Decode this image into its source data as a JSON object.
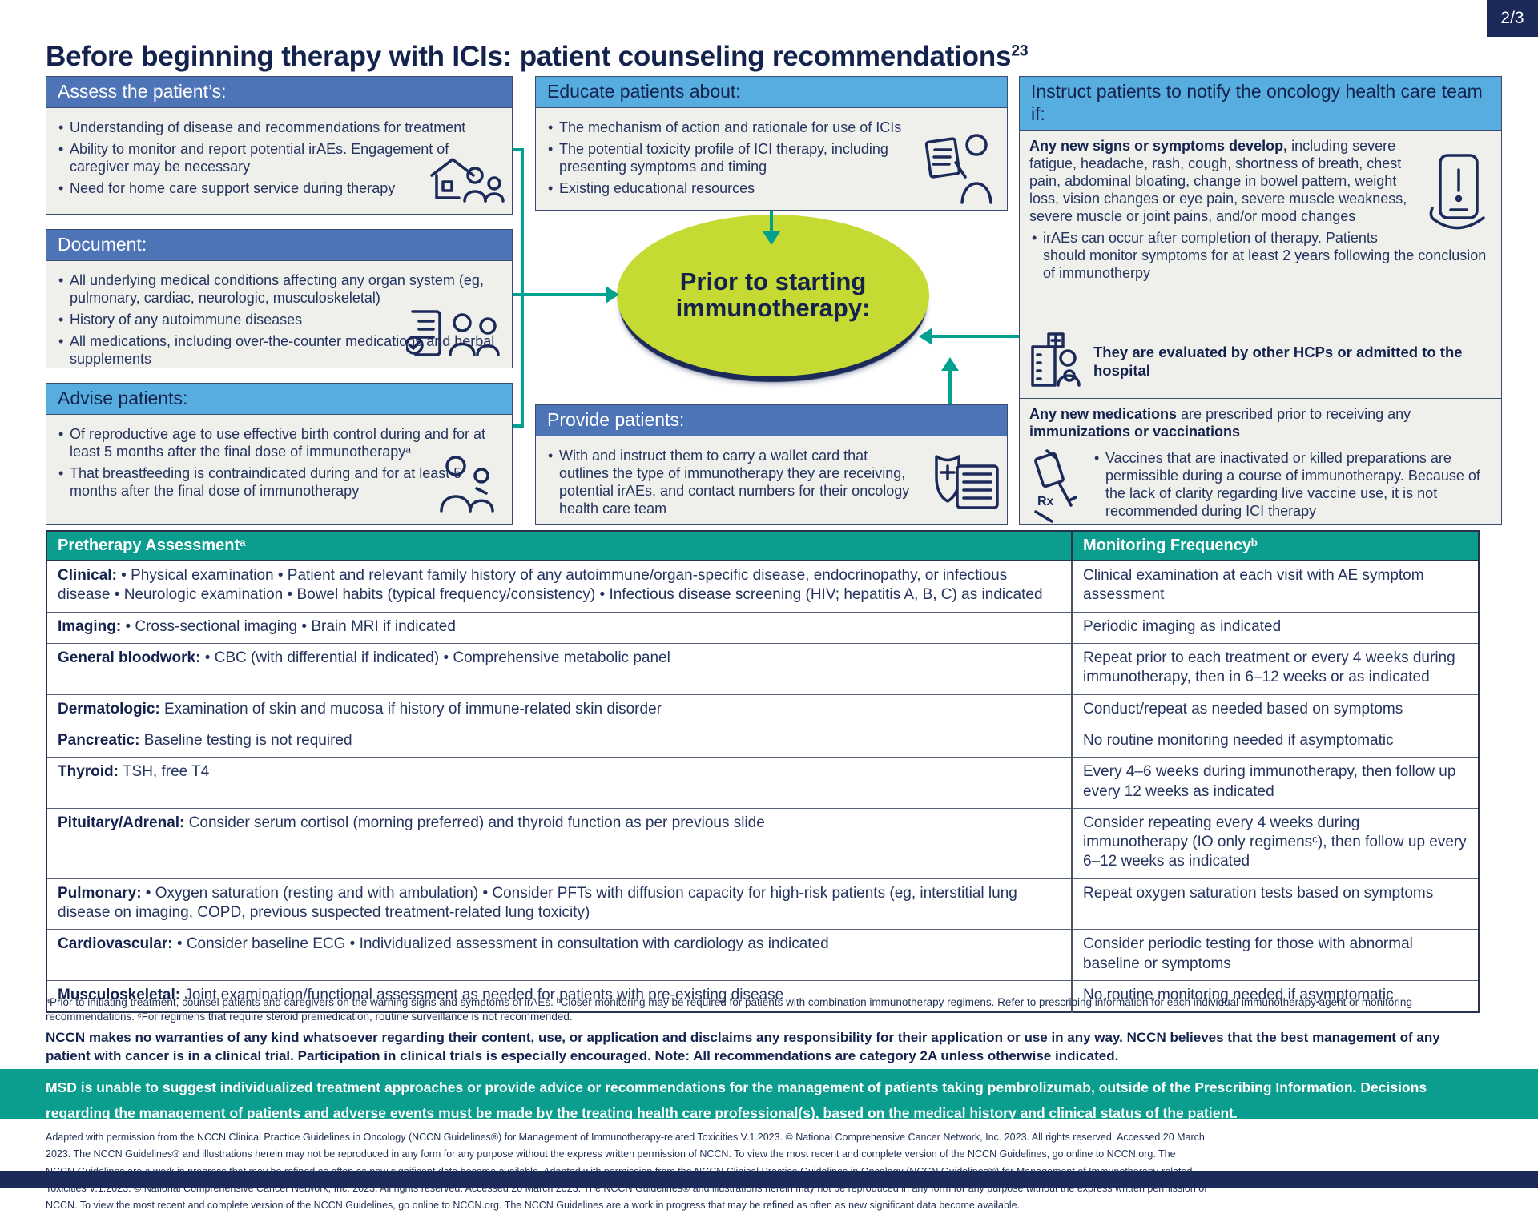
{
  "page": {
    "indicator": "2/3"
  },
  "title": {
    "text": "Before beginning therapy with ICIs: patient counseling recommendations",
    "sup": "23"
  },
  "colors": {
    "navy": "#1b2a59",
    "medium_blue": "#4d74b7",
    "light_blue": "#58ade0",
    "teal": "#0b9d8e",
    "arrow_teal": "#00a18f",
    "green": "#c5da33",
    "box_bg": "#efefec"
  },
  "flowchart": {
    "assess": {
      "header": "Assess the patient’s:",
      "bullets": [
        "Understanding of disease and recommendations for treatment",
        "Ability to monitor and report potential irAEs. Engagement of caregiver may be necessary",
        "Need for home care support service during therapy"
      ]
    },
    "document": {
      "header": "Document:",
      "bullets": [
        "All underlying medical conditions affecting any organ system (eg, pulmonary, cardiac, neurologic, musculoskeletal)",
        "History of any autoimmune diseases",
        "All medications, including over-the-counter medications and herbal supplements"
      ]
    },
    "advise": {
      "header": "Advise patients:",
      "bullets": [
        "Of reproductive age to use effective birth control during and for at least 5 months after the final dose of immunotherapyᵃ",
        "That breastfeeding is contraindicated during and for at least 5 months after the final dose of immunotherapy"
      ]
    },
    "educate": {
      "header": "Educate patients about:",
      "bullets": [
        "The mechanism of action and rationale for use of ICIs",
        "The potential toxicity profile of ICI therapy, including presenting symptoms and timing",
        "Existing educational resources"
      ]
    },
    "provide": {
      "header": "Provide patients:",
      "bullets": [
        "With and instruct them to carry a wallet card that outlines the type of immunotherapy they are receiving, potential irAEs, and contact numbers for their oncology health care team"
      ]
    },
    "ellipse": {
      "line1": "Prior to starting",
      "line2": "immunotherapy:"
    },
    "instruct": {
      "header": "Instruct patients to notify the oncology health care team if:",
      "s1_bold": "Any new signs or symptoms develop,",
      "s1_rest": " including severe fatigue, headache, rash, cough, shortness of breath, chest pain, abdominal bloating, change in bowel pattern, weight loss, vision changes or eye pain, severe muscle weakness, severe muscle or joint pains, and/or mood changes",
      "s1_bullets": [
        "irAEs can occur after completion of therapy. Patients should monitor symptoms for at least 2 years following the conclusion of immunotherpy"
      ],
      "s2_text": "They are evaluated by other HCPs or admitted to the hospital",
      "s3_bold1": "Any new medications",
      "s3_rest": " are prescribed prior to receiving any ",
      "s3_bold2": "immunizations or vaccinations",
      "s3_bullets": [
        "Vaccines that are inactivated or killed preparations are permissible during a course of immunotherapy. Because of the lack of clarity regarding live vaccine use, it is not recommended during ICI therapy"
      ]
    }
  },
  "table": {
    "headers": [
      "Pretherapy Assessmentᵃ",
      "Monitoring Frequencyᵇ"
    ],
    "rows": [
      {
        "label": "Clinical:",
        "text": "• Physical examination • Patient and relevant family history of any autoimmune/organ-specific disease, endocrinopathy, or infectious disease • Neurologic examination • Bowel habits (typical frequency/consistency) • Infectious disease screening (HIV; hepatitis A, B, C) as indicated",
        "frequency": "Clinical examination at each visit with AE symptom assessment"
      },
      {
        "label": "Imaging:",
        "text": "• Cross-sectional imaging • Brain MRI if indicated",
        "frequency": "Periodic imaging as indicated"
      },
      {
        "label": "General bloodwork:",
        "text": "• CBC (with differential if indicated) • Comprehensive metabolic panel",
        "frequency": "Repeat prior to each treatment or every 4 weeks during immunotherapy, then in 6–12 weeks or as indicated"
      },
      {
        "label": "Dermatologic:",
        "text": "Examination of skin and mucosa if history of immune-related skin disorder",
        "frequency": "Conduct/repeat as needed based on symptoms"
      },
      {
        "label": "Pancreatic:",
        "text": "Baseline testing is not required",
        "frequency": "No routine monitoring needed if asymptomatic"
      },
      {
        "label": "Thyroid:",
        "text": "TSH, free T4",
        "frequency": "Every 4–6 weeks during immunotherapy, then follow up every 12 weeks as indicated"
      },
      {
        "label": "Pituitary/Adrenal:",
        "text": "Consider serum cortisol (morning preferred) and thyroid function as per previous slide",
        "frequency": "Consider repeating every 4 weeks during immunotherapy (IO only regimensᶜ), then follow up every 6–12 weeks as indicated"
      },
      {
        "label": "Pulmonary:",
        "text": "• Oxygen saturation (resting and with ambulation) • Consider PFTs with diffusion capacity for high-risk patients (eg, interstitial lung disease on imaging, COPD, previous suspected treatment-related lung toxicity)",
        "frequency": "Repeat oxygen saturation tests based on symptoms"
      },
      {
        "label": "Cardiovascular:",
        "text": "• Consider baseline ECG • Individualized assessment in consultation with cardiology as indicated",
        "frequency": "Consider periodic testing for those with abnormal baseline or symptoms"
      },
      {
        "label": "Musculoskeletal:",
        "text": "Joint examination/functional assessment as needed for patients with pre-existing disease",
        "frequency": "No routine monitoring needed if asymptomatic"
      }
    ]
  },
  "footnotes": "ᵃPrior to initiating treatment, counsel patients and caregivers on the warning signs and symptoms of irAEs. ᵇCloser monitoring may be required for patients with combination immunotherapy regimens. Refer to prescribing information for each individual immunotherapy agent or monitoring recommendations. ᶜFor regimens that require steroid premedication, routine surveillance is not recommended.",
  "nccn_disclaimer": "NCCN makes no warranties of any kind whatsoever regarding their content, use, or application and disclaims any responsibility for their application or use in any way.  NCCN believes that the best management of any patient with cancer is in a clinical trial. Participation in clinical trials is especially encouraged. Note: All recommendations are category 2A unless otherwise indicated.",
  "msd_disclaimer": "MSD is unable to suggest individualized treatment approaches or provide advice or recommendations for the management of patients taking pembrolizumab, outside of the Prescribing Information. Decisions regarding the management of patients and adverse events must be made by the treating health care professional(s), based on the medical history and clinical status of the patient.",
  "adapted_text": "Adapted with permission from the NCCN Clinical Practice Guidelines in Oncology (NCCN Guidelines®) for Management of Immunotherapy-related Toxicities V.1.2023. © National Comprehensive Cancer Network, Inc. 2023. All rights reserved. Accessed 20 March 2023. The NCCN Guidelines® and illustrations herein may not be reproduced in any form for any purpose without the express written permission of NCCN. To view the most recent and complete version of the NCCN Guidelines, go online to NCCN.org. The NCCN Guidelines are a work in progress that may be refined as often as new significant data become available. Adapted with permission from the NCCN Clinical Practice Guidelines in Oncology (NCCN Guidelines®) for Management of Immunotherapy-related Toxicities V.1.2023. © National Comprehensive Cancer Network, Inc. 2023. All rights reserved. Accessed 20 March 2023. The NCCN Guidelines® and illustrations herein may not be reproduced in any form for any purpose without the express written permission of NCCN. To view the most recent and complete version of the NCCN Guidelines, go online to NCCN.org. The NCCN Guidelines are a work in progress that may be refined as often as new significant data become available."
}
